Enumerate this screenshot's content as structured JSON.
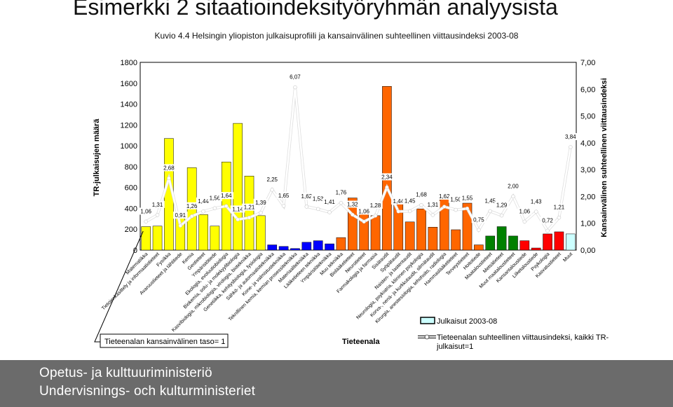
{
  "header": {
    "title": "Esimerkki  2 sitaatioindeksityöryhmän analyysista",
    "subtitle": "Kuvio 4.4 Helsingin yliopiston julkaisuprofiili ja kansainvälinen suhteellinen viittausindeksi 2003-08"
  },
  "legend": {
    "bar_label": "Julkaisut 2003-08",
    "line_label_1": "Tieteenalan suhteellinen viittausindeksi, kaikki TR-",
    "line_label_2": "julkaisut=1",
    "baseline_label": "Tieteenalan kansainvälinen taso= 1",
    "category_axis_label": "Tieteenala"
  },
  "colors": {
    "yellow": "#ffff00",
    "blue": "#0000ff",
    "orange": "#ff6600",
    "green": "#008000",
    "red": "#ff0000",
    "lightblue": "#ccffff",
    "line": "#ffffff",
    "footer": "#6b6b6b"
  },
  "chart_data": {
    "type": "bar",
    "ylabel": "TR-julkaisujen määrä",
    "y2label": "Kansainvälinen suhteellinen viittausindeksi",
    "xlabel": "Tieteenala",
    "ylim": [
      0,
      1800
    ],
    "y2lim": [
      0,
      7
    ],
    "y_ticks": [
      "0",
      "200",
      "400",
      "600",
      "800",
      "1000",
      "1200",
      "1400",
      "1600",
      "1800"
    ],
    "y2_ticks": [
      "0,00",
      "1,00",
      "2,00",
      "3,00",
      "4,00",
      "5,00",
      "6,00",
      "7,00"
    ],
    "categories": [
      "Matematiikka",
      "Tietojenkäsittely ja informaatiotieteet",
      "Fysiikka",
      "Avaruustieteet ja tähtitiede",
      "Kemia",
      "Geotieteet",
      "Ympäristötiede",
      "Ekologia, evoluutiobiologia",
      "Biokemia, solu- ja molekyylibiologia",
      "Kasvibiologia, mikrobiologia, virologia, biotekniikka",
      "Genetiikka, kehitysbiologia, fysiologia",
      "Sähkö- ja automaatiotekniikka",
      "Kone- ja valmistustekniikka",
      "Teknillinen kemia, kemian prosessitekniikka",
      "Materiaalitekniikka",
      "Lääketieteen tekniikka",
      "Ympäristötekniikka",
      "Muu tekniikka",
      "Biolääketieteet",
      "Neurotieteet",
      "Farmakologia ja farmasia",
      "Sisätaudit",
      "Syöpätaudit",
      "Naisten- ja lastentaudit",
      "Neurologia, psykiatria, kliininen psykologia",
      "Korva-, nenä- ja kurkkutaudit, silmätaudit",
      "Kirurgia, anestesiologia, tehohoito, radiologia",
      "Hammaslääketieteet",
      "Terveystieteet",
      "Hoitotiede",
      "Maataloustieteet",
      "Metsätieteet",
      "Muut maataloustieteet",
      "Kansantaloustiede",
      "Liiketaloustiede",
      "Psykologia",
      "Kasvatustieteet",
      "Muut"
    ],
    "series": [
      {
        "name": "Julkaisut 2003-08",
        "values": [
          225,
          230,
          1070,
          305,
          790,
          340,
          230,
          845,
          1215,
          710,
          330,
          50,
          35,
          15,
          75,
          90,
          60,
          120,
          500,
          390,
          330,
          1570,
          470,
          270,
          395,
          220,
          540,
          195,
          450,
          50,
          135,
          225,
          135,
          90,
          20,
          155,
          175,
          155
        ],
        "colors": [
          "yellow",
          "yellow",
          "yellow",
          "yellow",
          "yellow",
          "yellow",
          "yellow",
          "yellow",
          "yellow",
          "yellow",
          "yellow",
          "blue",
          "blue",
          "blue",
          "blue",
          "blue",
          "blue",
          "orange",
          "orange",
          "orange",
          "orange",
          "orange",
          "orange",
          "orange",
          "orange",
          "orange",
          "orange",
          "orange",
          "orange",
          "orange",
          "green",
          "green",
          "green",
          "red",
          "red",
          "red",
          "red",
          "lightblue"
        ]
      },
      {
        "name": "Tieteenalan suhteellinen viittausindeksi, kaikki TR-julkaisut=1",
        "axis": "y2",
        "values": [
          1.06,
          1.31,
          2.68,
          0.91,
          1.26,
          1.44,
          1.56,
          1.64,
          1.14,
          1.21,
          1.39,
          2.25,
          1.65,
          6.07,
          1.62,
          1.53,
          1.41,
          1.76,
          1.32,
          1.06,
          1.28,
          2.34,
          1.44,
          1.45,
          1.68,
          1.31,
          1.62,
          1.5,
          1.55,
          0.75,
          1.45,
          1.29,
          2.0,
          1.06,
          1.43,
          0.72,
          1.21,
          3.84
        ],
        "labels": [
          "1,06",
          "1,31",
          "2,68",
          "0,91",
          "1,26",
          "1,44",
          "1,56",
          "1,64",
          "1,14",
          "1,21",
          "1,39",
          "2,25",
          "1,65",
          "6,07",
          "1,62",
          "1,53",
          "1,41",
          "1,76",
          "1,32",
          "1,06",
          "1,28",
          "2,34",
          "1,44",
          "1,45",
          "1,68",
          "1,31",
          "1,62",
          "1,50",
          "1,55",
          "0,75",
          "1,45",
          "1,29",
          "2,00",
          "1,06",
          "1,43",
          "0,72",
          "1,21",
          "3,84"
        ]
      }
    ],
    "legend_position": "bottom-right",
    "grid": false
  },
  "footer": {
    "line1": "Opetus- ja kulttuuriministeriö",
    "line2": "Undervisnings- och kulturministeriet"
  }
}
